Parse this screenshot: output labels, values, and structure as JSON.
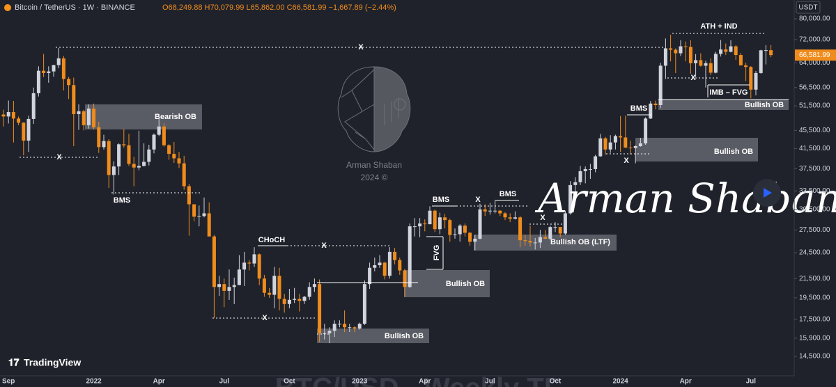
{
  "header": {
    "symbol": "Bitcoin / TetherUS · 1W · BINANCE",
    "ohlc": "O68,249.88 H70,079.99 L65,862.00 C66,581.99 −1,667.89 (−2.44%)"
  },
  "branding": "TradingView",
  "chart_data": {
    "type": "candlestick",
    "log_scale": true,
    "y_unit": "USDT",
    "up_color": "#d1d4dc",
    "down_color": "#f08c1c",
    "ylim": [
      13140,
      87980
    ],
    "yticks": [
      {
        "value": 80000,
        "label": "80,000.00"
      },
      {
        "value": 72000,
        "label": "72,000.00"
      },
      {
        "value": 64000,
        "label": "64,000.00"
      },
      {
        "value": 56500,
        "label": "56,500.00"
      },
      {
        "value": 51500,
        "label": "51,500.00"
      },
      {
        "value": 45500,
        "label": "45,500.00"
      },
      {
        "value": 41500,
        "label": "41,500.00"
      },
      {
        "value": 37500,
        "label": "37,500.00"
      },
      {
        "value": 33500,
        "label": "33,500.00"
      },
      {
        "value": 30500,
        "label": "30,500.00"
      },
      {
        "value": 27500,
        "label": "27,500.00"
      },
      {
        "value": 24500,
        "label": "24,500.00"
      },
      {
        "value": 21500,
        "label": "21,500.00"
      },
      {
        "value": 19500,
        "label": "19,500.00"
      },
      {
        "value": 17500,
        "label": "17,500.00"
      },
      {
        "value": 15900,
        "label": "15,900.00"
      },
      {
        "value": 14500,
        "label": "14,500.00"
      }
    ],
    "price_tag": {
      "value": 66581.99,
      "label": "66,581.99"
    },
    "categories": [
      null,
      "Sep",
      null,
      null,
      null,
      null,
      null,
      null,
      null,
      null,
      null,
      null,
      null,
      null,
      null,
      null,
      null,
      null,
      "2022",
      null,
      null,
      null,
      null,
      null,
      null,
      null,
      null,
      null,
      null,
      null,
      null,
      "Apr",
      null,
      null,
      null,
      null,
      null,
      null,
      null,
      null,
      null,
      null,
      null,
      null,
      "Jul",
      null,
      null,
      null,
      null,
      null,
      null,
      null,
      null,
      null,
      null,
      null,
      null,
      "Oct",
      null,
      null,
      null,
      null,
      null,
      null,
      null,
      null,
      null,
      null,
      null,
      null,
      null,
      "2023",
      null,
      null,
      null,
      null,
      null,
      null,
      null,
      null,
      null,
      null,
      null,
      null,
      "Apr",
      null,
      null,
      null,
      null,
      null,
      null,
      null,
      null,
      null,
      null,
      null,
      null,
      "Jul",
      null,
      null,
      null,
      null,
      null,
      null,
      null,
      null,
      null,
      null,
      null,
      null,
      "Oct",
      null,
      null,
      null,
      null,
      null,
      null,
      null,
      null,
      null,
      null,
      null,
      null,
      "2024",
      null,
      null,
      null,
      null,
      null,
      null,
      null,
      null,
      null,
      null,
      null,
      null,
      "Apr",
      null,
      null,
      null,
      null,
      null,
      null,
      null,
      null,
      null,
      null,
      null,
      null,
      "Jul",
      null,
      null,
      null,
      null
    ],
    "open": [
      49300,
      48800,
      49900,
      48300,
      47300,
      43200,
      48200,
      54900,
      61500,
      60800,
      61300,
      63300,
      65500,
      59000,
      57200,
      49400,
      50100,
      46700,
      50800,
      46200,
      41800,
      43100,
      36300,
      37900,
      42400,
      42200,
      38400,
      37700,
      38000,
      38800,
      41300,
      44500,
      46400,
      42200,
      40400,
      39500,
      38500,
      34300,
      31300,
      29400,
      29500,
      29900,
      26600,
      20600,
      20900,
      20200,
      20600,
      20800,
      22500,
      23300,
      23200,
      24300,
      21500,
      20000,
      19800,
      21800,
      19400,
      18900,
      19300,
      19400,
      19200,
      19600,
      20600,
      20900,
      16300,
      16300,
      16500,
      17100,
      17100,
      16800,
      16800,
      16700,
      17100,
      20900,
      22700,
      23000,
      23300,
      21800,
      24600,
      23600,
      22400,
      20600,
      28000,
      28000,
      28400,
      28300,
      30300,
      27600,
      29300,
      28900,
      26800,
      26900,
      28100,
      27100,
      25900,
      26300,
      30500,
      30200,
      30300,
      30300,
      29900,
      29300,
      29100,
      29300,
      26100,
      26000,
      25800,
      25800,
      26500,
      26300,
      27900,
      27900,
      27000,
      29900,
      34500,
      35000,
      37000,
      37400,
      37400,
      39900,
      43700,
      41300,
      42800,
      44200,
      43900,
      41700,
      41600,
      42000,
      42600,
      48300,
      52100,
      51700,
      63100,
      68900,
      68400,
      67200,
      69600,
      69400,
      63900,
      64900,
      63100,
      63900,
      60900,
      67000,
      68500,
      67700,
      69600,
      66600,
      63200,
      62700,
      55900,
      60800,
      68200,
      68249.88
    ],
    "high": [
      50500,
      52900,
      52800,
      48800,
      47400,
      49000,
      56500,
      62900,
      67000,
      62900,
      63400,
      69000,
      66300,
      59600,
      59400,
      51900,
      50500,
      51900,
      52100,
      47500,
      44500,
      43500,
      38900,
      42600,
      45800,
      44700,
      39800,
      45400,
      42600,
      42300,
      44800,
      48200,
      47100,
      42400,
      42900,
      40800,
      40000,
      34700,
      31300,
      31100,
      32400,
      31600,
      26800,
      21800,
      21500,
      22500,
      21600,
      24200,
      24600,
      23600,
      25200,
      24400,
      21900,
      20500,
      22800,
      22700,
      19900,
      20400,
      20500,
      19900,
      19700,
      21100,
      21500,
      21400,
      17100,
      16800,
      17400,
      17400,
      18300,
      17100,
      16900,
      17200,
      21300,
      23300,
      23900,
      24200,
      23400,
      25200,
      25100,
      23900,
      22600,
      28400,
      29200,
      29200,
      29000,
      31000,
      30500,
      30000,
      29800,
      29100,
      27700,
      28300,
      28400,
      27200,
      26800,
      31400,
      31300,
      31500,
      31800,
      30400,
      30100,
      29900,
      30200,
      29500,
      26800,
      28100,
      26400,
      27500,
      27500,
      28100,
      28600,
      27900,
      30300,
      35200,
      35900,
      38000,
      37900,
      38400,
      40200,
      44700,
      44000,
      44400,
      44500,
      48900,
      49000,
      43200,
      42200,
      43800,
      48600,
      52800,
      52900,
      64000,
      72400,
      73800,
      68900,
      71800,
      71300,
      71800,
      66900,
      67200,
      64700,
      65500,
      67700,
      71900,
      70600,
      71800,
      70000,
      67300,
      64100,
      63000,
      61400,
      68400,
      70000,
      70079.99
    ],
    "low": [
      46400,
      47100,
      42800,
      46700,
      40100,
      40800,
      47000,
      54000,
      59600,
      57900,
      59700,
      62300,
      55700,
      53300,
      42000,
      45600,
      45500,
      45900,
      45700,
      40600,
      41300,
      34000,
      32900,
      36300,
      41700,
      38000,
      34300,
      37200,
      37900,
      38100,
      40500,
      44200,
      41900,
      39200,
      38600,
      37600,
      33700,
      26700,
      28700,
      28000,
      29300,
      26600,
      17600,
      19700,
      18600,
      19300,
      18900,
      20800,
      20700,
      22400,
      22800,
      20800,
      19600,
      19500,
      18500,
      18300,
      18100,
      18500,
      19000,
      18200,
      18900,
      19300,
      20100,
      15600,
      15800,
      15500,
      16000,
      16800,
      16400,
      16400,
      16400,
      16600,
      17000,
      20400,
      22300,
      22700,
      21400,
      21500,
      23100,
      21900,
      19600,
      20500,
      26600,
      26500,
      27300,
      28300,
      27200,
      26900,
      27700,
      25900,
      26300,
      25900,
      26600,
      25400,
      24800,
      26200,
      29500,
      29700,
      29900,
      29500,
      28900,
      28600,
      29000,
      25200,
      25400,
      25300,
      24900,
      25100,
      26300,
      26100,
      27200,
      26500,
      26800,
      29700,
      33400,
      34500,
      34800,
      35600,
      36800,
      39800,
      40200,
      40600,
      41300,
      40800,
      41600,
      40300,
      38500,
      41900,
      42300,
      48200,
      50600,
      50900,
      59000,
      64500,
      60800,
      66300,
      64500,
      60600,
      59600,
      62800,
      56500,
      60200,
      60700,
      66100,
      66600,
      67500,
      65000,
      63200,
      58400,
      53500,
      54300,
      60600,
      63500,
      65862
    ],
    "close": [
      48800,
      49900,
      48300,
      47300,
      43200,
      48200,
      54900,
      61500,
      60800,
      61300,
      63300,
      65500,
      59000,
      57200,
      49400,
      50100,
      46700,
      50800,
      46200,
      41800,
      43100,
      36300,
      37900,
      42400,
      42200,
      38400,
      37700,
      38000,
      38800,
      41300,
      44500,
      46400,
      42200,
      40400,
      39500,
      38500,
      34300,
      31300,
      29400,
      29500,
      29900,
      26600,
      20600,
      20900,
      20200,
      20600,
      20800,
      22500,
      23300,
      23200,
      24300,
      21500,
      20000,
      19800,
      21800,
      19400,
      18900,
      19300,
      19400,
      19200,
      19600,
      20600,
      20900,
      16300,
      16300,
      16500,
      17100,
      17100,
      16800,
      16800,
      16700,
      17100,
      20900,
      22700,
      23000,
      23300,
      21800,
      24600,
      23600,
      22400,
      20600,
      28000,
      28000,
      28400,
      28300,
      30300,
      27600,
      29300,
      28900,
      26800,
      26900,
      28100,
      27100,
      25900,
      26300,
      30500,
      30200,
      30300,
      30300,
      29900,
      29300,
      29100,
      29300,
      26100,
      26000,
      25800,
      25800,
      26500,
      26300,
      27900,
      27900,
      27000,
      29900,
      34500,
      35000,
      37000,
      37400,
      37400,
      39900,
      43700,
      41300,
      42800,
      44200,
      43900,
      41700,
      41600,
      42000,
      42600,
      48300,
      52100,
      51700,
      63100,
      68900,
      68400,
      67200,
      69600,
      69400,
      63900,
      64900,
      63100,
      63900,
      60900,
      67000,
      68500,
      67700,
      69600,
      66600,
      63200,
      62700,
      55900,
      60800,
      68200,
      68249.88,
      66581.99
    ],
    "annotations": [
      "Bearish OB",
      "BMS",
      "X",
      "X",
      "CHoCH",
      "X",
      "X",
      "Bullish OB",
      "Bullish OB",
      "FVG",
      "BMS",
      "X",
      "BMS",
      "X",
      "Bullish OB (LTF)",
      "BMS",
      "X",
      "Bullish OB",
      "ATH + IND",
      "X",
      "IMB – FVG",
      "Bullish OB"
    ],
    "watermark": "BTC/USD - Weekly TF",
    "signature": "Arman Shaban",
    "logo_text": [
      "Arman Shaban",
      "2024 ©"
    ]
  }
}
